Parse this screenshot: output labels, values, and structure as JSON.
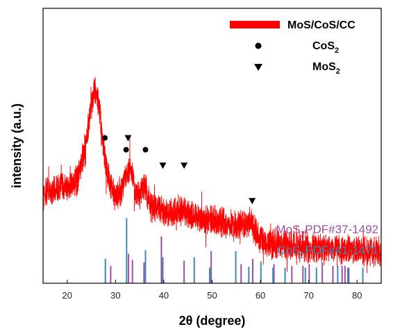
{
  "chart_data": {
    "type": "line",
    "xlabel": "2θ (degree)",
    "ylabel": "intensity (a.u.)",
    "xlim": [
      15,
      85
    ],
    "xticks": [
      20,
      30,
      40,
      50,
      60,
      70,
      80
    ],
    "grid": false,
    "legend_position": "top-right",
    "series": [
      {
        "name": "MoS/CoS/CC",
        "color": "#ff0000",
        "x": [
          15,
          18,
          20,
          22,
          23,
          24,
          25,
          25.7,
          26.5,
          27.2,
          28,
          29,
          30,
          31,
          32,
          33,
          34,
          35,
          36,
          37,
          38,
          40,
          42,
          44,
          46,
          48,
          50,
          52,
          54,
          56,
          58,
          60,
          62,
          64,
          66,
          68,
          70,
          72,
          74,
          76,
          78,
          80,
          82,
          85
        ],
        "y": [
          53,
          54,
          54.5,
          56,
          60,
          67,
          75,
          80,
          76,
          68,
          60,
          55,
          52,
          53,
          57,
          59,
          54,
          52,
          55,
          50,
          49,
          48.5,
          48,
          48.5,
          47,
          46,
          46,
          45.5,
          45,
          45,
          45.5,
          41,
          40,
          40,
          39.5,
          39.5,
          39,
          39,
          39,
          38.5,
          38.5,
          38.5,
          38,
          38
        ]
      }
    ],
    "markers": [
      {
        "name": "CoS_2",
        "symbol": "circle",
        "x": [
          27.8,
          32.2,
          36.2
        ],
        "y": [
          67,
          64,
          64
        ]
      },
      {
        "name": "MoS_2",
        "symbol": "triangle",
        "x": [
          32.6,
          39.8,
          44.2,
          58.3
        ],
        "y": [
          67,
          60,
          60,
          51
        ]
      }
    ],
    "reference_patterns": [
      {
        "label": "MoS",
        "label_sub": "2",
        "label_rest": "PDF#37-1492",
        "color": "#9b4f9f",
        "peaks": [
          {
            "x": 29.0,
            "h": 0.2
          },
          {
            "x": 32.7,
            "h": 0.34
          },
          {
            "x": 33.5,
            "h": 0.27
          },
          {
            "x": 35.9,
            "h": 0.24
          },
          {
            "x": 39.5,
            "h": 0.54
          },
          {
            "x": 44.2,
            "h": 0.26
          },
          {
            "x": 49.8,
            "h": 0.37
          },
          {
            "x": 56.0,
            "h": 0.22
          },
          {
            "x": 58.4,
            "h": 0.28
          },
          {
            "x": 62.8,
            "h": 0.22
          },
          {
            "x": 66.5,
            "h": 0.2
          },
          {
            "x": 68.8,
            "h": 0.2
          },
          {
            "x": 70.1,
            "h": 0.22
          },
          {
            "x": 72.8,
            "h": 0.24
          },
          {
            "x": 75.0,
            "h": 0.2
          },
          {
            "x": 76.9,
            "h": 0.2
          },
          {
            "x": 77.5,
            "h": 0.2
          },
          {
            "x": 78.3,
            "h": 0.18
          }
        ]
      },
      {
        "label": "CoS",
        "label_sub": "2",
        "label_rest": "PDF#41-1471",
        "color": "#3b87b8",
        "peaks": [
          {
            "x": 27.9,
            "h": 0.28
          },
          {
            "x": 32.3,
            "h": 0.75
          },
          {
            "x": 36.2,
            "h": 0.38
          },
          {
            "x": 39.8,
            "h": 0.3
          },
          {
            "x": 46.3,
            "h": 0.3
          },
          {
            "x": 49.5,
            "h": 0.18
          },
          {
            "x": 54.9,
            "h": 0.37
          },
          {
            "x": 57.6,
            "h": 0.19
          },
          {
            "x": 60.1,
            "h": 0.25
          },
          {
            "x": 62.6,
            "h": 0.18
          },
          {
            "x": 65.1,
            "h": 0.18
          },
          {
            "x": 69.3,
            "h": 0.18
          },
          {
            "x": 71.6,
            "h": 0.18
          },
          {
            "x": 76.0,
            "h": 0.2
          },
          {
            "x": 78.1,
            "h": 0.18
          },
          {
            "x": 81.2,
            "h": 0.18
          }
        ]
      }
    ],
    "legend": [
      {
        "label": "MoS/CoS/CC",
        "symbol": "bar",
        "color": "#ff0000"
      },
      {
        "label_main": "CoS",
        "label_sub": "2",
        "symbol": "circle",
        "color": "#000000"
      },
      {
        "label_main": "MoS",
        "label_sub": "2",
        "symbol": "triangle",
        "color": "#000000"
      }
    ]
  }
}
